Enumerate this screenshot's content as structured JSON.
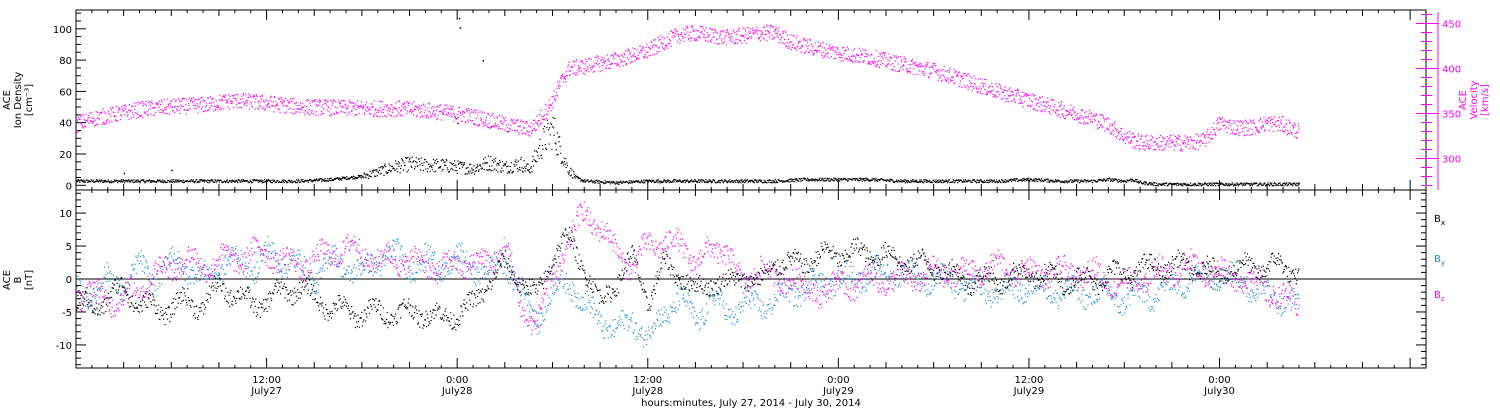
{
  "figure": {
    "xlabel": "hours:minutes, July 27, 2014 - July 30, 2014",
    "x_ticks": [
      {
        "label": "12:00",
        "sublabel": "July27",
        "hour": 12
      },
      {
        "label": "0:00",
        "sublabel": "July28",
        "hour": 24
      },
      {
        "label": "12:00",
        "sublabel": "July28",
        "hour": 36
      },
      {
        "label": "0:00",
        "sublabel": "July29",
        "hour": 48
      },
      {
        "label": "12:00",
        "sublabel": "July29",
        "hour": 60
      },
      {
        "label": "0:00",
        "sublabel": "July30",
        "hour": 72
      }
    ]
  },
  "colors": {
    "black": "#000000",
    "magenta": "#ff00ff",
    "blue": "#1a8fe0"
  },
  "chart_data": [
    {
      "type": "scatter",
      "title": "",
      "xlim_hours": [
        0,
        85
      ],
      "ylabel_lines": [
        "ACE",
        "Ion Density",
        "[cm⁻³]"
      ],
      "ylim": [
        -3,
        112
      ],
      "y_ticks": [
        0,
        20,
        40,
        60,
        80,
        100
      ],
      "y2label_lines": [
        "ACE",
        "Velocity",
        "[km/s]"
      ],
      "y2lim": [
        265,
        465
      ],
      "y2_ticks": [
        300,
        350,
        400,
        450
      ],
      "series": [
        {
          "name": "Ion Density",
          "axis": "left",
          "color": "#000000",
          "x": [
            0,
            2,
            4,
            6,
            8,
            10,
            12,
            14,
            16,
            18,
            19,
            20,
            21,
            22,
            23,
            24,
            25,
            25.5,
            26,
            27,
            28,
            28.5,
            29,
            29.5,
            30,
            30.5,
            31,
            31.5,
            32,
            34,
            36,
            38,
            40,
            42,
            44,
            46,
            48,
            50,
            52,
            54,
            56,
            58,
            60,
            62,
            64,
            65,
            66,
            66.5,
            67,
            68,
            70,
            72,
            74,
            76,
            77
          ],
          "y": [
            3,
            3,
            3,
            3,
            3,
            3,
            3,
            3,
            4,
            6,
            9,
            12,
            14,
            13,
            13,
            12,
            11,
            13,
            15,
            12,
            14,
            10,
            20,
            30,
            36,
            22,
            10,
            5,
            3,
            2,
            3,
            3,
            3,
            3,
            3,
            4,
            4,
            4,
            3,
            3,
            3,
            3,
            4,
            3,
            3,
            4,
            3,
            4,
            2,
            1,
            1,
            1,
            1,
            1,
            1
          ]
        },
        {
          "name": "Velocity",
          "axis": "right",
          "color": "#ff00ff",
          "x": [
            0,
            1,
            2,
            4,
            6,
            8,
            10,
            12,
            14,
            16,
            18,
            20,
            22,
            23,
            24,
            25,
            26,
            27,
            28,
            28.5,
            29,
            29.5,
            30,
            30.5,
            31,
            32,
            34,
            36,
            37,
            38,
            39,
            40,
            41,
            42,
            43,
            44,
            45,
            46,
            48,
            50,
            52,
            54,
            56,
            58,
            60,
            62,
            64,
            65,
            66,
            67,
            68,
            69,
            70,
            71,
            72,
            73,
            74,
            75,
            76,
            77
          ],
          "y": [
            338,
            345,
            348,
            355,
            358,
            360,
            365,
            362,
            358,
            357,
            356,
            356,
            354,
            352,
            350,
            347,
            343,
            338,
            335,
            333,
            340,
            352,
            365,
            385,
            400,
            403,
            410,
            420,
            430,
            438,
            440,
            437,
            435,
            437,
            440,
            440,
            430,
            425,
            418,
            413,
            405,
            398,
            387,
            375,
            365,
            355,
            345,
            338,
            325,
            318,
            318,
            318,
            318,
            320,
            340,
            335,
            335,
            340,
            338,
            330
          ]
        }
      ]
    },
    {
      "type": "scatter",
      "title": "",
      "xlim_hours": [
        0,
        85
      ],
      "ylabel_lines": [
        "ACE",
        "B",
        "[nT]"
      ],
      "ylim": [
        -13.5,
        13.5
      ],
      "y_ticks": [
        -10,
        -5,
        0,
        5,
        10
      ],
      "legend_placement": "right",
      "series": [
        {
          "name": "Bx",
          "color": "#000000",
          "x": [
            0,
            1,
            2,
            3,
            4,
            6,
            7,
            8,
            9,
            10,
            11,
            12,
            13,
            14,
            15,
            16,
            17,
            18,
            19,
            20,
            21,
            22,
            23,
            24,
            25,
            26,
            27,
            28,
            29,
            30,
            31,
            32,
            33,
            34,
            35,
            36,
            37,
            38,
            39,
            40,
            41,
            42,
            43,
            44,
            45,
            46,
            48,
            50,
            52,
            54,
            56,
            58,
            60,
            62,
            64,
            66,
            68,
            70,
            72,
            74,
            76,
            77
          ],
          "y": [
            -4,
            -4,
            -3,
            -1,
            -4,
            -4.5,
            -3,
            -4,
            -1,
            -2,
            -4,
            -3,
            -2,
            -1,
            -3,
            -4,
            -5,
            -5,
            -5,
            -5,
            -5,
            -5,
            -6,
            -5,
            -4,
            0,
            2,
            0,
            -3,
            4,
            6,
            2,
            -4,
            0,
            3,
            -3,
            2,
            1,
            -2,
            0,
            -1,
            1,
            -1,
            3,
            2,
            3,
            4,
            4,
            3,
            2,
            0,
            0,
            1,
            0,
            0,
            1,
            2,
            2,
            1,
            2,
            2,
            1
          ]
        },
        {
          "name": "By",
          "color": "#1a8fe0",
          "x": [
            0,
            1,
            2,
            3,
            4,
            5,
            6,
            7,
            8,
            9,
            10,
            11,
            12,
            13,
            14,
            15,
            16,
            17,
            18,
            19,
            20,
            21,
            22,
            23,
            24,
            25,
            26,
            27,
            28,
            29,
            30,
            31,
            32,
            33,
            34,
            35,
            36,
            37,
            38,
            39,
            40,
            41,
            42,
            43,
            44,
            45,
            46,
            48,
            50,
            52,
            54,
            56,
            58,
            60,
            62,
            64,
            66,
            68,
            70,
            72,
            74,
            76,
            77
          ],
          "y": [
            -2,
            -2,
            0,
            -1,
            2,
            0,
            3,
            2,
            0,
            2,
            3,
            1,
            4,
            3,
            2,
            0,
            3,
            2,
            1,
            3,
            4,
            2,
            3,
            2,
            3,
            2,
            1,
            3,
            -2,
            -6,
            -2,
            0,
            -4,
            -6,
            -8,
            -6,
            -9,
            -5,
            -3,
            -6,
            -3,
            -5,
            -4,
            -4,
            -3,
            -2,
            -1,
            0,
            1,
            1,
            0,
            -1,
            -2,
            -1,
            -2,
            -2,
            -3,
            -2,
            0,
            1,
            -1,
            -3,
            -4
          ]
        },
        {
          "name": "Bz",
          "color": "#ff00ff",
          "x": [
            0,
            1,
            2,
            3,
            4,
            5,
            6,
            7,
            8,
            9,
            10,
            11,
            12,
            13,
            14,
            15,
            16,
            17,
            18,
            19,
            20,
            21,
            22,
            23,
            24,
            25,
            26,
            27,
            28,
            29,
            30,
            31,
            32,
            33,
            34,
            35,
            36,
            37,
            38,
            39,
            40,
            41,
            42,
            43,
            44,
            45,
            46,
            48,
            50,
            52,
            54,
            56,
            58,
            60,
            62,
            64,
            66,
            68,
            70,
            72,
            74,
            76,
            77
          ],
          "y": [
            -2,
            -2,
            -3,
            -3,
            -1,
            1,
            2,
            3,
            2,
            3,
            3,
            4,
            4,
            3,
            2,
            3,
            4,
            5,
            4,
            3,
            3,
            3,
            2,
            2,
            2,
            3,
            2,
            6,
            -5,
            -6,
            0,
            6,
            10,
            8,
            4,
            2,
            5,
            6,
            5,
            3,
            4,
            5,
            -2,
            3,
            -1,
            1,
            -2,
            -1,
            0,
            0,
            1,
            1,
            2,
            1,
            1,
            1,
            -1,
            1,
            2,
            1,
            0,
            -3,
            -4
          ]
        }
      ]
    }
  ]
}
